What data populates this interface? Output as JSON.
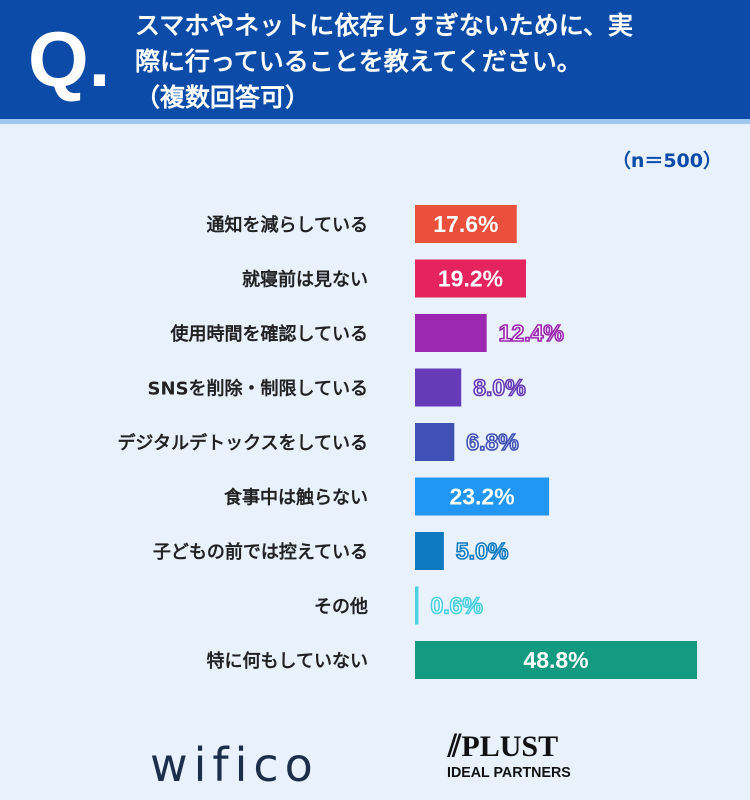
{
  "header": {
    "q_mark": "Q.",
    "title_lines": [
      "スマホやネットに依存しすぎないために、実",
      "際に行っていることを教えてください。",
      "（複数回答可）"
    ]
  },
  "sample": "（n＝500）",
  "chart_data": {
    "type": "bar",
    "orientation": "horizontal",
    "unit": "%",
    "categories": [
      "通知を減らしている",
      "就寝前は見ない",
      "使用時間を確認している",
      "SNSを削除・制限している",
      "デジタルデトックスをしている",
      "食事中は触らない",
      "子どもの前では控えている",
      "その他",
      "特に何もしていない"
    ],
    "values": [
      17.6,
      19.2,
      12.4,
      8.0,
      6.8,
      23.2,
      5.0,
      0.6,
      48.8
    ],
    "labels": [
      "17.6%",
      "19.2%",
      "12.4%",
      "8.0%",
      "6.8%",
      "23.2%",
      "5.0%",
      "0.6%",
      "48.8%"
    ],
    "colors": [
      "#ea4f3b",
      "#e5245e",
      "#9c27b0",
      "#673ab7",
      "#3f51b5",
      "#2196f3",
      "#0d7ac2",
      "#4dd0e1",
      "#139a80"
    ],
    "grid": false
  },
  "logos": {
    "wifico": "wifico",
    "plust": "PLUST",
    "ideal": "IDEAL PARTNERS"
  }
}
